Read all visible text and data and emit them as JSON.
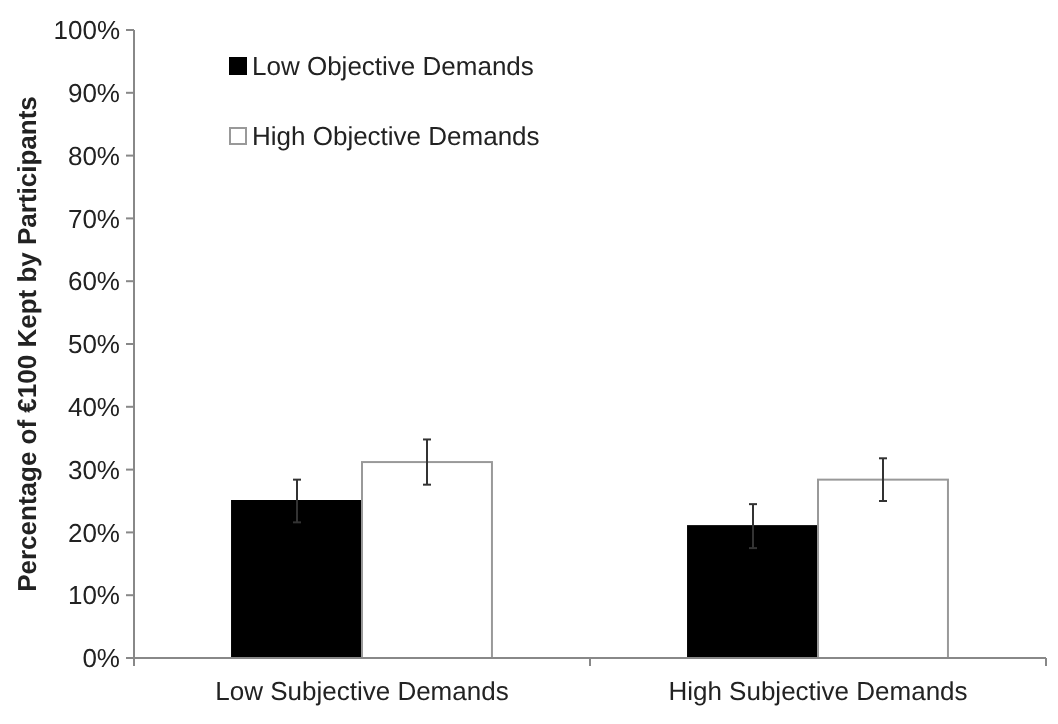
{
  "chart_data": {
    "type": "bar",
    "ylabel": "Percentage of €100 Kept by Participants",
    "categories": [
      "Low Subjective Demands",
      "High Subjective Demands"
    ],
    "series": [
      {
        "name": "Low Objective Demands",
        "color": "#000000",
        "values": [
          25.0,
          21.0
        ],
        "errors": [
          3.4,
          3.5
        ]
      },
      {
        "name": "High Objective Demands",
        "color": "#ffffff",
        "values": [
          31.2,
          28.4
        ],
        "errors": [
          3.6,
          3.4
        ]
      }
    ],
    "ylim": [
      0,
      100
    ],
    "yticks": [
      {
        "value": 0,
        "label": "0%"
      },
      {
        "value": 10,
        "label": "10%"
      },
      {
        "value": 20,
        "label": "20%"
      },
      {
        "value": 30,
        "label": "30%"
      },
      {
        "value": 40,
        "label": "40%"
      },
      {
        "value": 50,
        "label": "50%"
      },
      {
        "value": 60,
        "label": "60%"
      },
      {
        "value": 70,
        "label": "70%"
      },
      {
        "value": 80,
        "label": "80%"
      },
      {
        "value": 90,
        "label": "90%"
      },
      {
        "value": 100,
        "label": "100%"
      }
    ],
    "legend": "top left",
    "grid": false
  }
}
